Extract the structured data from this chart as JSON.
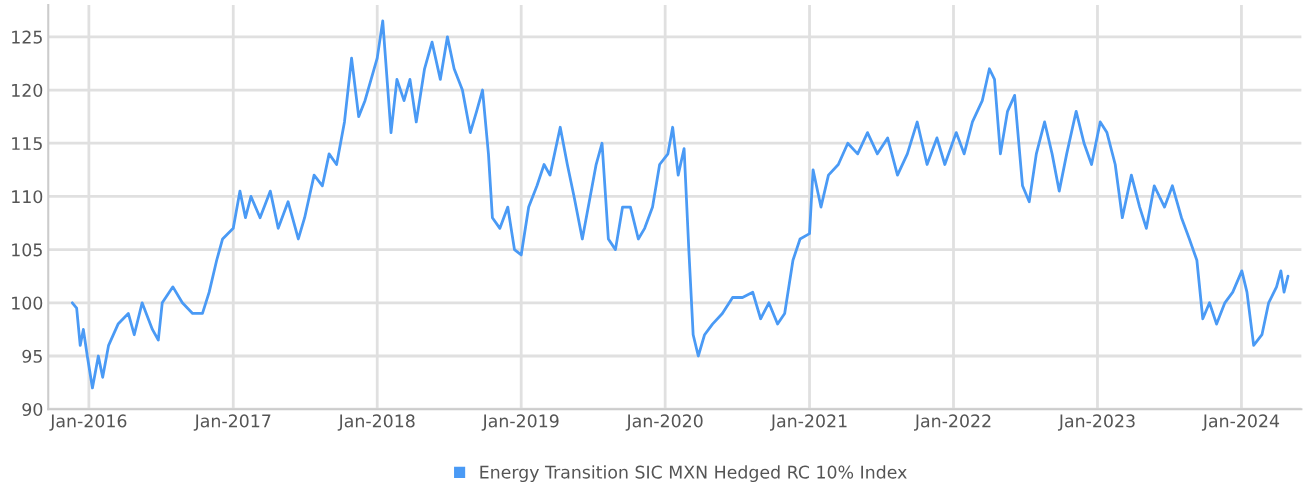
{
  "chart_data": {
    "type": "line",
    "xlim": [
      "2015-09-20",
      "2024-06-01"
    ],
    "ylim": [
      90,
      128
    ],
    "xticks": [
      {
        "value": "2016-01",
        "label": "Jan-2016"
      },
      {
        "value": "2017-01",
        "label": "Jan-2017"
      },
      {
        "value": "2018-01",
        "label": "Jan-2018"
      },
      {
        "value": "2019-01",
        "label": "Jan-2019"
      },
      {
        "value": "2020-01",
        "label": "Jan-2020"
      },
      {
        "value": "2021-01",
        "label": "Jan-2021"
      },
      {
        "value": "2022-01",
        "label": "Jan-2022"
      },
      {
        "value": "2023-01",
        "label": "Jan-2023"
      },
      {
        "value": "2024-01",
        "label": "Jan-2024"
      }
    ],
    "yticks": [
      90,
      95,
      100,
      105,
      110,
      115,
      120,
      125
    ],
    "grid": true,
    "legend": "bottom",
    "marker": "none",
    "line_style": "solid",
    "x": [
      "2015-11-20",
      "2015-12-01",
      "2015-12-10",
      "2015-12-18",
      "2015-12-28",
      "2016-01-10",
      "2016-01-25",
      "2016-02-05",
      "2016-02-20",
      "2016-03-15",
      "2016-04-10",
      "2016-04-25",
      "2016-05-15",
      "2016-06-10",
      "2016-06-25",
      "2016-07-05",
      "2016-08-01",
      "2016-08-25",
      "2016-09-20",
      "2016-10-15",
      "2016-11-01",
      "2016-11-20",
      "2016-12-05",
      "2017-01-01",
      "2017-01-18",
      "2017-02-01",
      "2017-02-15",
      "2017-03-10",
      "2017-04-05",
      "2017-04-25",
      "2017-05-20",
      "2017-06-15",
      "2017-07-01",
      "2017-07-25",
      "2017-08-15",
      "2017-09-01",
      "2017-09-20",
      "2017-10-10",
      "2017-10-28",
      "2017-11-15",
      "2017-12-01",
      "2018-01-01",
      "2018-01-15",
      "2018-02-05",
      "2018-02-20",
      "2018-03-10",
      "2018-03-25",
      "2018-04-10",
      "2018-05-01",
      "2018-05-20",
      "2018-06-10",
      "2018-06-28",
      "2018-07-15",
      "2018-08-05",
      "2018-08-25",
      "2018-09-10",
      "2018-09-25",
      "2018-10-10",
      "2018-10-20",
      "2018-11-08",
      "2018-11-28",
      "2018-12-15",
      "2019-01-01",
      "2019-01-20",
      "2019-02-10",
      "2019-02-28",
      "2019-03-15",
      "2019-04-10",
      "2019-04-28",
      "2019-05-15",
      "2019-06-05",
      "2019-06-25",
      "2019-07-10",
      "2019-07-25",
      "2019-08-10",
      "2019-08-28",
      "2019-09-15",
      "2019-10-05",
      "2019-10-25",
      "2019-11-10",
      "2019-11-30",
      "2019-12-18",
      "2020-01-08",
      "2020-01-20",
      "2020-02-03",
      "2020-02-18",
      "2020-03-01",
      "2020-03-12",
      "2020-03-25",
      "2020-04-10",
      "2020-04-30",
      "2020-05-25",
      "2020-06-20",
      "2020-07-15",
      "2020-08-10",
      "2020-08-30",
      "2020-09-20",
      "2020-10-12",
      "2020-10-30",
      "2020-11-20",
      "2020-12-08",
      "2021-01-01",
      "2021-01-10",
      "2021-01-30",
      "2021-02-18",
      "2021-03-15",
      "2021-04-08",
      "2021-05-03",
      "2021-05-28",
      "2021-06-22",
      "2021-07-18",
      "2021-08-12",
      "2021-09-06",
      "2021-10-01",
      "2021-10-26",
      "2021-11-20",
      "2021-12-10",
      "2022-01-08",
      "2022-01-28",
      "2022-02-18",
      "2022-03-15",
      "2022-04-02",
      "2022-04-15",
      "2022-04-30",
      "2022-05-18",
      "2022-06-05",
      "2022-06-25",
      "2022-07-12",
      "2022-07-30",
      "2022-08-20",
      "2022-09-08",
      "2022-09-26",
      "2022-10-15",
      "2022-11-08",
      "2022-11-28",
      "2022-12-17",
      "2023-01-08",
      "2023-01-25",
      "2023-02-15",
      "2023-03-05",
      "2023-03-28",
      "2023-04-18",
      "2023-05-05",
      "2023-05-25",
      "2023-06-20",
      "2023-07-10",
      "2023-08-02",
      "2023-08-22",
      "2023-09-10",
      "2023-09-25",
      "2023-10-12",
      "2023-10-30",
      "2023-11-20",
      "2023-12-10",
      "2024-01-02",
      "2024-01-15",
      "2024-02-01",
      "2024-02-22",
      "2024-03-10",
      "2024-03-30",
      "2024-04-10",
      "2024-04-18",
      "2024-04-28"
    ],
    "series": [
      {
        "name": "Energy Transition SIC MXN Hedged RC 10% Index",
        "color": "#4a9af5",
        "values": [
          100,
          99.5,
          96,
          97.5,
          95,
          92,
          95,
          93,
          96,
          98,
          99,
          97,
          100,
          97.5,
          96.5,
          100,
          101.5,
          100,
          99,
          99,
          101,
          104,
          106,
          107,
          110.5,
          108,
          110,
          108,
          110.5,
          107,
          109.5,
          106,
          108,
          112,
          111,
          114,
          113,
          117,
          123,
          117.5,
          119,
          123,
          126.5,
          116,
          121,
          119,
          121,
          117,
          122,
          124.5,
          121,
          125,
          122,
          120,
          116,
          118,
          120,
          114,
          108,
          107,
          109,
          105,
          104.5,
          109,
          111,
          113,
          112,
          116.5,
          113,
          110,
          106,
          110,
          113,
          115,
          106,
          105,
          109,
          109,
          106,
          107,
          109,
          113,
          114,
          116.5,
          112,
          114.5,
          105,
          97,
          95,
          97,
          98,
          99,
          100.5,
          100.5,
          101,
          98.5,
          100,
          98,
          99,
          104,
          106,
          106.5,
          112.5,
          109,
          112,
          113,
          115,
          114,
          116,
          114,
          115.5,
          112,
          114,
          117,
          113,
          115.5,
          113,
          116,
          114,
          117,
          119,
          122,
          121,
          114,
          118,
          119.5,
          111,
          109.5,
          114,
          117,
          114,
          110.5,
          114,
          118,
          115,
          113,
          117,
          116,
          113,
          108,
          112,
          109,
          107,
          111,
          109,
          111,
          108,
          106,
          104,
          98.5,
          100,
          98,
          100,
          101,
          103,
          101,
          96,
          97,
          100,
          101.5,
          103,
          101,
          102.5
        ]
      }
    ]
  }
}
